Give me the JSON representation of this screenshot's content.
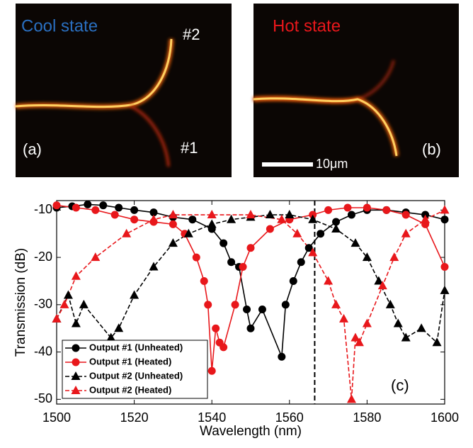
{
  "panels": [
    {
      "label": "(a)",
      "title": "Cool state",
      "port_top": "#2",
      "port_bottom": "#1"
    },
    {
      "label": "(b)",
      "title": "Hot state",
      "scale_bar": "10μm"
    }
  ],
  "chart_data": {
    "type": "line",
    "panel_label": "(c)",
    "xlabel": "Wavelength (nm)",
    "ylabel": "Transmission (dB)",
    "xlim": [
      1500,
      1600
    ],
    "ylim": [
      -51,
      -8
    ],
    "xticks": [
      1500,
      1520,
      1540,
      1560,
      1580,
      1600
    ],
    "yticks": [
      -10,
      -20,
      -30,
      -40,
      -50
    ],
    "vline": 1566.5,
    "legend": "lower-left",
    "series": [
      {
        "name": "Output #1 (Unheated)",
        "color": "#000000",
        "marker": "circle",
        "dash": false,
        "x": [
          1500,
          1504,
          1508,
          1512,
          1516,
          1520,
          1525,
          1530,
          1535,
          1540,
          1543,
          1545,
          1547,
          1549,
          1550,
          1553,
          1558,
          1559,
          1561,
          1563,
          1565,
          1568,
          1572,
          1576,
          1580,
          1585,
          1590,
          1595,
          1600
        ],
        "values": [
          -9.5,
          -9.2,
          -8.8,
          -9,
          -9.5,
          -10,
          -10.5,
          -11.5,
          -12,
          -14,
          -17,
          -21,
          -22,
          -31,
          -35,
          -31,
          -41,
          -30,
          -25,
          -21,
          -18,
          -15,
          -12.5,
          -11,
          -10,
          -10,
          -10.5,
          -11,
          -12
        ]
      },
      {
        "name": "Output #1 (Heated)",
        "color": "#e8171b",
        "marker": "circle",
        "dash": false,
        "x": [
          1500,
          1505,
          1510,
          1515,
          1520,
          1525,
          1530,
          1533,
          1536,
          1538,
          1539,
          1540,
          1541,
          1542,
          1543,
          1546,
          1548,
          1550,
          1555,
          1560,
          1566,
          1570,
          1575,
          1580,
          1585,
          1590,
          1595,
          1600
        ],
        "values": [
          -9,
          -9.5,
          -10,
          -11,
          -12,
          -12.5,
          -13,
          -15,
          -20,
          -25,
          -30,
          -44,
          -35,
          -38,
          -39,
          -30,
          -22,
          -18,
          -14,
          -12,
          -11,
          -10,
          -9.5,
          -9.5,
          -10,
          -11,
          -13,
          -22
        ]
      },
      {
        "name": "Output #2 (Unheated)",
        "color": "#000000",
        "marker": "triangle",
        "dash": true,
        "x": [
          1500,
          1503,
          1505,
          1507,
          1514,
          1516,
          1520,
          1525,
          1530,
          1534,
          1540,
          1545,
          1550,
          1555,
          1560,
          1566,
          1572,
          1577,
          1580,
          1583,
          1586,
          1588,
          1590,
          1594,
          1598,
          1600
        ],
        "values": [
          -33,
          -28,
          -34,
          -30,
          -37,
          -35,
          -28,
          -22,
          -17,
          -15,
          -13,
          -12,
          -11.5,
          -11,
          -11,
          -12,
          -14,
          -17,
          -20,
          -25,
          -30,
          -34,
          -37,
          -35,
          -38,
          -27
        ]
      },
      {
        "name": "Output #2 (Heated)",
        "color": "#e8171b",
        "marker": "triangle",
        "dash": true,
        "x": [
          1500,
          1502,
          1505,
          1510,
          1518,
          1525,
          1530,
          1540,
          1550,
          1558,
          1562,
          1566,
          1570,
          1572,
          1574,
          1576,
          1577,
          1578,
          1580,
          1584,
          1587,
          1590,
          1595,
          1600
        ],
        "values": [
          -33,
          -30,
          -24,
          -20,
          -15,
          -12,
          -11,
          -11,
          -11,
          -12,
          -15,
          -19,
          -25,
          -30,
          -33,
          -50,
          -37,
          -38,
          -34,
          -26,
          -20,
          -15,
          -12,
          -10
        ]
      }
    ]
  }
}
